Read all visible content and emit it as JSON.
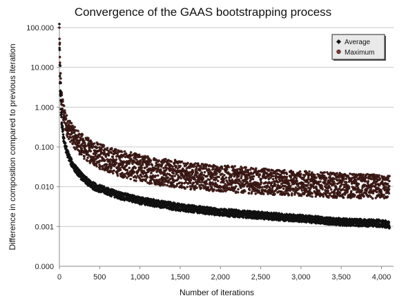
{
  "chart_data": {
    "type": "scatter",
    "title": "Convergence of the GAAS bootstrapping process",
    "xlabel": "Number of iterations",
    "ylabel": "Difference in composition compared to previous iteration",
    "x_ticks": [
      0,
      500,
      1000,
      1500,
      2000,
      2500,
      3000,
      3500,
      4000
    ],
    "x_tick_labels": [
      "0",
      "500",
      "1,000",
      "1,500",
      "2,000",
      "2,500",
      "3,000",
      "3,500",
      "4,000"
    ],
    "xlim": [
      0,
      4150
    ],
    "y_scale": "log",
    "y_ticks": [
      100,
      10,
      1,
      0.1,
      0.01,
      0.001
    ],
    "y_tick_labels": [
      "100.000",
      "10.000",
      "1.000",
      "0.100",
      "0.010",
      "0.001"
    ],
    "y_zero_label": "0.000",
    "ylim": [
      0.0001,
      100
    ],
    "grid": "horizontal",
    "legend_position": "top-right",
    "series": [
      {
        "name": "Average",
        "color": "#111111",
        "marker": "diamond",
        "x": [
          0,
          5,
          10,
          20,
          30,
          50,
          75,
          100,
          150,
          200,
          300,
          400,
          500,
          750,
          1000,
          1500,
          2000,
          2500,
          3000,
          3500,
          4000,
          4100
        ],
        "values": [
          100,
          8,
          3,
          0.8,
          0.4,
          0.18,
          0.1,
          0.07,
          0.04,
          0.028,
          0.016,
          0.011,
          0.009,
          0.006,
          0.0045,
          0.003,
          0.0023,
          0.0019,
          0.0016,
          0.0013,
          0.0012,
          0.0011
        ]
      },
      {
        "name": "Maximum",
        "color": "#5a2a22",
        "marker": "circle",
        "x": [
          0,
          5,
          10,
          20,
          30,
          50,
          75,
          100,
          150,
          200,
          300,
          400,
          500,
          750,
          1000,
          1500,
          2000,
          2500,
          3000,
          3500,
          4000,
          4100
        ],
        "values": [
          100,
          20,
          8,
          3,
          1.6,
          0.9,
          0.55,
          0.4,
          0.26,
          0.18,
          0.11,
          0.08,
          0.065,
          0.045,
          0.035,
          0.025,
          0.019,
          0.016,
          0.014,
          0.012,
          0.011,
          0.011
        ],
        "band_low": [
          100,
          8,
          3,
          1.2,
          0.7,
          0.4,
          0.25,
          0.18,
          0.12,
          0.085,
          0.05,
          0.036,
          0.028,
          0.018,
          0.013,
          0.009,
          0.0075,
          0.0065,
          0.0058,
          0.0052,
          0.005,
          0.0048
        ],
        "band_high": [
          100,
          40,
          15,
          5,
          2.5,
          1.3,
          0.8,
          0.6,
          0.4,
          0.3,
          0.2,
          0.15,
          0.12,
          0.085,
          0.065,
          0.045,
          0.035,
          0.029,
          0.025,
          0.022,
          0.02,
          0.019
        ]
      }
    ]
  }
}
